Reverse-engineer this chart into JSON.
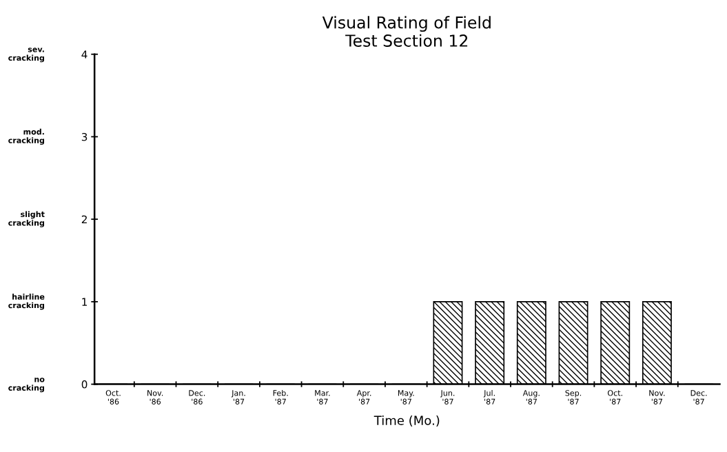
{
  "chart_data": {
    "type": "bar",
    "title": "Visual Rating of Field\nTest Section 12",
    "xlabel": "Time (Mo.)",
    "categories": [
      "Oct.\n'86",
      "Nov.\n'86",
      "Dec.\n'86",
      "Jan.\n'87",
      "Feb.\n'87",
      "Mar.\n'87",
      "Apr.\n'87",
      "May.\n'87",
      "Jun.\n'87",
      "Jul.\n'87",
      "Aug.\n'87",
      "Sep.\n'87",
      "Oct.\n'87",
      "Nov.\n'87",
      "Dec.\n'87"
    ],
    "values": [
      0,
      0,
      0,
      0,
      0,
      0,
      0,
      0,
      1,
      1,
      1,
      1,
      1,
      1,
      0
    ],
    "color": "#000000",
    "ylim": [
      0,
      4
    ],
    "yticks": [
      0,
      1,
      2,
      3,
      4
    ],
    "grid": false,
    "annotations": [
      "no\ncracking",
      "hairline\ncracking",
      "slight\ncracking",
      "mod.\ncracking",
      "sev.\ncracking"
    ]
  }
}
